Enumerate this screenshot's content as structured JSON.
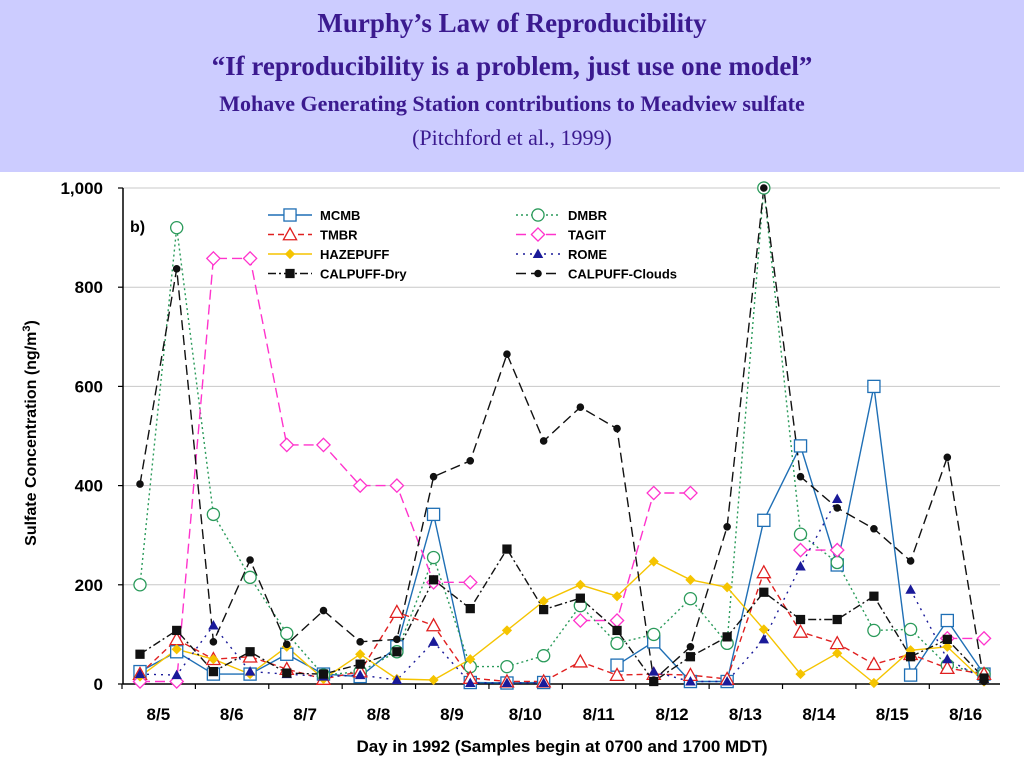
{
  "header": {
    "title": "Murphy’s Law of Reproducibility",
    "quote": "“If reproducibility is a problem, just use one model”",
    "subtitle": "Mohave Generating Station contributions to Meadview sulfate",
    "citation": "(Pitchford et al., 1999)"
  },
  "chart_data": {
    "type": "line",
    "panel_label": "b)",
    "xlabel": "Day in 1992 (Samples begin at 0700 and 1700 MDT)",
    "ylabel": "Sulfate Concentration (ng/m",
    "ylabel_sup": "3",
    "ylabel_end": ")",
    "ylim": [
      0,
      1000
    ],
    "yticks": [
      0,
      200,
      400,
      600,
      800,
      1000
    ],
    "ytick_labels": [
      "0",
      "200",
      "400",
      "600",
      "800",
      "1,000"
    ],
    "x_tick_labels": [
      "8/5",
      "8/6",
      "8/7",
      "8/8",
      "8/9",
      "8/10",
      "8/11",
      "8/12",
      "8/13",
      "8/14",
      "8/15",
      "8/16"
    ],
    "x_description": "Two samples per day (0700 and 1700 MDT), 8/5 through 8/16",
    "grid": true,
    "legend_position": "top",
    "series": [
      {
        "name": "MCMB",
        "color": "#1f6fb5",
        "dash": "none",
        "marker": "square-open",
        "values": [
          25,
          65,
          20,
          20,
          60,
          20,
          15,
          75,
          342,
          3,
          2,
          3,
          null,
          38,
          85,
          5,
          5,
          330,
          480,
          240,
          600,
          18,
          128,
          20
        ]
      },
      {
        "name": "DMBR",
        "color": "#2a9a5a",
        "dash": "2,3",
        "marker": "circle-open",
        "values": [
          200,
          920,
          342,
          215,
          102,
          18,
          25,
          65,
          255,
          35,
          35,
          57,
          158,
          82,
          100,
          172,
          82,
          1000,
          302,
          245,
          108,
          110,
          38,
          20
        ]
      },
      {
        "name": "TMBR",
        "color": "#e02020",
        "dash": "6,4",
        "marker": "triangle-open",
        "values": [
          20,
          90,
          50,
          55,
          30,
          10,
          25,
          145,
          118,
          12,
          5,
          5,
          45,
          18,
          20,
          18,
          10,
          225,
          105,
          82,
          40,
          60,
          32,
          20
        ]
      },
      {
        "name": "TAGIT",
        "color": "#ff33cc",
        "dash": "10,5",
        "marker": "diamond-open",
        "values": [
          5,
          5,
          858,
          858,
          482,
          482,
          400,
          400,
          205,
          205,
          null,
          null,
          128,
          128,
          385,
          385,
          null,
          null,
          270,
          270,
          null,
          null,
          92,
          92
        ]
      },
      {
        "name": "HAZEPUFF",
        "color": "#f5c400",
        "dash": "none",
        "marker": "diamond-filled",
        "values": [
          15,
          70,
          50,
          20,
          75,
          10,
          60,
          10,
          8,
          50,
          108,
          167,
          200,
          177,
          247,
          210,
          195,
          110,
          20,
          62,
          2,
          68,
          75,
          5
        ]
      },
      {
        "name": "ROME",
        "color": "#1a1a99",
        "dash": "2,5",
        "marker": "triangle-filled",
        "values": [
          20,
          18,
          118,
          25,
          20,
          15,
          18,
          8,
          85,
          2,
          2,
          2,
          null,
          null,
          25,
          5,
          5,
          90,
          237,
          373,
          null,
          190,
          50,
          10
        ]
      },
      {
        "name": "CALPUFF-Dry",
        "color": "#111111",
        "dash": "8,3,2,3",
        "marker": "square-filled",
        "values": [
          60,
          108,
          25,
          65,
          22,
          20,
          40,
          65,
          210,
          152,
          272,
          150,
          173,
          108,
          5,
          55,
          95,
          185,
          130,
          130,
          177,
          55,
          90,
          12
        ]
      },
      {
        "name": "CALPUFF-Clouds",
        "color": "#111111",
        "dash": "10,5",
        "marker": "circle-filled",
        "values": [
          403,
          837,
          85,
          250,
          80,
          148,
          85,
          90,
          418,
          450,
          665,
          490,
          558,
          515,
          8,
          75,
          317,
          1000,
          418,
          355,
          313,
          248,
          457,
          5
        ]
      }
    ]
  }
}
